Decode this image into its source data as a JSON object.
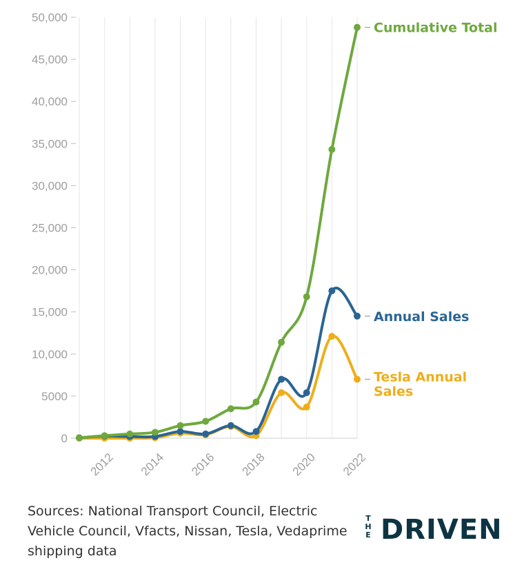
{
  "chart_data": {
    "type": "line",
    "x": [
      2011,
      2012,
      2013,
      2014,
      2015,
      2016,
      2017,
      2018,
      2019,
      2020,
      2021,
      2022
    ],
    "series": [
      {
        "name": "Cumulative Total",
        "color": "#6fa83e",
        "values": [
          50,
          300,
          500,
          700,
          1500,
          2000,
          3500,
          4300,
          11400,
          16800,
          34300,
          48800
        ]
      },
      {
        "name": "Annual Sales",
        "color": "#2a6593",
        "values": [
          50,
          250,
          200,
          200,
          800,
          500,
          1500,
          800,
          7000,
          5400,
          17500,
          14500
        ]
      },
      {
        "name": "Tesla Annual Sales",
        "color": "#eeae1b",
        "values": [
          0,
          0,
          0,
          50,
          600,
          400,
          1400,
          300,
          5400,
          3700,
          12100,
          7000
        ]
      }
    ],
    "xlim": [
      2011,
      2022
    ],
    "ylim": [
      0,
      50000
    ],
    "xticks": [
      "2012",
      "2014",
      "2016",
      "2018",
      "2020",
      "2022"
    ],
    "yticks": [
      "0",
      "5000",
      "10,000",
      "15,000",
      "20,000",
      "25,000",
      "30,000",
      "35,000",
      "40,000",
      "45,000",
      "50,000"
    ],
    "grid": "vertical",
    "legend": "end-of-line labels"
  },
  "source_text": "Sources: National Transport Council, Electric Vehicle Council, Vfacts, Nissan, Tesla, Vedaprime shipping data",
  "brand": {
    "small": "THE",
    "name": "DRIVEN",
    "color": "#0d3442"
  }
}
